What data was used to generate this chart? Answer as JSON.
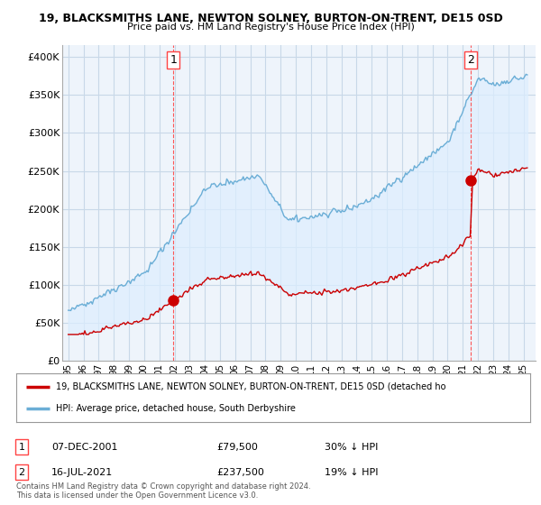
{
  "title": "19, BLACKSMITHS LANE, NEWTON SOLNEY, BURTON-ON-TRENT, DE15 0SD",
  "subtitle": "Price paid vs. HM Land Registry's House Price Index (HPI)",
  "ylabel_ticks": [
    "£0",
    "£50K",
    "£100K",
    "£150K",
    "£200K",
    "£250K",
    "£300K",
    "£350K",
    "£400K"
  ],
  "ytick_values": [
    0,
    50000,
    100000,
    150000,
    200000,
    250000,
    300000,
    350000,
    400000
  ],
  "ylim": [
    0,
    415000
  ],
  "xlim_start": 1994.6,
  "xlim_end": 2025.8,
  "sale1_x": 2001.92,
  "sale1_y": 79500,
  "sale1_label": "1",
  "sale2_x": 2021.54,
  "sale2_y": 237500,
  "sale2_label": "2",
  "legend_line1": "19, BLACKSMITHS LANE, NEWTON SOLNEY, BURTON-ON-TRENT, DE15 0SD (detached ho",
  "legend_line2": "HPI: Average price, detached house, South Derbyshire",
  "annotation1_date": "07-DEC-2001",
  "annotation1_price": "£79,500",
  "annotation1_hpi": "30% ↓ HPI",
  "annotation2_date": "16-JUL-2021",
  "annotation2_price": "£237,500",
  "annotation2_hpi": "19% ↓ HPI",
  "footer": "Contains HM Land Registry data © Crown copyright and database right 2024.\nThis data is licensed under the Open Government Licence v3.0.",
  "hpi_color": "#6baed6",
  "sale_color": "#cc0000",
  "fill_color": "#ddeeff",
  "vline_color": "#ff4444",
  "background_color": "#ffffff",
  "plot_bg_color": "#eef4fb",
  "grid_color": "#c8d8e8"
}
